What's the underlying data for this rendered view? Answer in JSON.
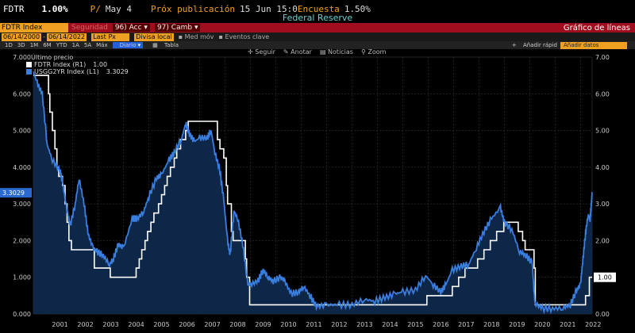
{
  "header": {
    "ticker": "FDTR",
    "price": "1.00%",
    "prior_label": "P/",
    "prior_value": "May 4",
    "next_label": "Próx publicación",
    "next_value": "15 Jun 15:0",
    "survey_label": "Encuesta",
    "survey_value": "1.50%",
    "subtitle": "Federal Reserve"
  },
  "toolbar": {
    "security_field": "FDTR Index",
    "security_hint": "Seguridad",
    "actions_num": "96)",
    "actions_label": "Acc",
    "change_num": "97)",
    "change_label": "Camb",
    "chart_type": "Gráfico de líneas"
  },
  "controls": {
    "date_from": "06/14/2000",
    "date_to": "06/14/2022",
    "last_px": "Last Px",
    "currency": "Divisa local",
    "avg_mov": "Med móv",
    "key_events": "Eventos clave"
  },
  "periods": {
    "items": [
      "1D",
      "3D",
      "1M",
      "6M",
      "YTD",
      "1A",
      "5A",
      "Máx"
    ],
    "frequency": "Diario",
    "table": "Tabla",
    "quick_add": "Añadir rápid",
    "add_data": "Añadir datos"
  },
  "chart_tools": {
    "follow": "Seguir",
    "annotate": "Anotar",
    "news": "Noticias",
    "zoom": "Zoom"
  },
  "legend": {
    "header": "Último precio",
    "items": [
      {
        "name": "FDTR Index (R1)",
        "value": "1.00",
        "color": "#ffffff"
      },
      {
        "name": "USGG2YR Index (L1)",
        "value": "3.3029",
        "color": "#3a7fe0"
      }
    ]
  },
  "chart_data": {
    "type": "line",
    "x_ticks": [
      "2001",
      "2002",
      "2003",
      "2004",
      "2005",
      "2006",
      "2007",
      "2008",
      "2009",
      "2010",
      "2011",
      "2012",
      "2013",
      "2014",
      "2015",
      "2016",
      "2017",
      "2018",
      "2019",
      "2020",
      "2021",
      "2022"
    ],
    "left_ticks": [
      "0.000",
      "1.000",
      "2.000",
      "3.000",
      "4.000",
      "5.000",
      "6.000",
      "7.000"
    ],
    "right_ticks": [
      "0.00",
      "1.00",
      "2.00",
      "3.00",
      "4.00",
      "5.00",
      "6.00",
      "7.00"
    ],
    "ylim": [
      0,
      7
    ],
    "xlim": [
      2000.45,
      2022.46
    ],
    "last_left": "3.3029",
    "last_right": "1.00",
    "series": [
      {
        "name": "FDTR Index (R1)",
        "color": "#ffffff",
        "points": [
          [
            2000.45,
            6.5
          ],
          [
            2001.0,
            6.5
          ],
          [
            2001.05,
            6.0
          ],
          [
            2001.1,
            5.5
          ],
          [
            2001.2,
            5.0
          ],
          [
            2001.3,
            4.5
          ],
          [
            2001.38,
            4.0
          ],
          [
            2001.45,
            3.75
          ],
          [
            2001.6,
            3.5
          ],
          [
            2001.7,
            3.0
          ],
          [
            2001.78,
            2.5
          ],
          [
            2001.85,
            2.0
          ],
          [
            2001.95,
            1.75
          ],
          [
            2002.85,
            1.25
          ],
          [
            2003.48,
            1.0
          ],
          [
            2004.5,
            1.25
          ],
          [
            2004.62,
            1.5
          ],
          [
            2004.72,
            1.75
          ],
          [
            2004.85,
            2.0
          ],
          [
            2004.95,
            2.25
          ],
          [
            2005.08,
            2.5
          ],
          [
            2005.2,
            2.75
          ],
          [
            2005.38,
            3.0
          ],
          [
            2005.5,
            3.25
          ],
          [
            2005.62,
            3.5
          ],
          [
            2005.72,
            3.75
          ],
          [
            2005.85,
            4.0
          ],
          [
            2006.0,
            4.25
          ],
          [
            2006.1,
            4.5
          ],
          [
            2006.25,
            4.75
          ],
          [
            2006.45,
            5.0
          ],
          [
            2006.55,
            5.25
          ],
          [
            2007.7,
            4.75
          ],
          [
            2007.8,
            4.5
          ],
          [
            2007.95,
            4.25
          ],
          [
            2008.05,
            3.5
          ],
          [
            2008.1,
            3.0
          ],
          [
            2008.25,
            2.25
          ],
          [
            2008.32,
            2.0
          ],
          [
            2008.8,
            1.5
          ],
          [
            2008.85,
            1.0
          ],
          [
            2008.97,
            0.25
          ],
          [
            2015.95,
            0.5
          ],
          [
            2016.95,
            0.75
          ],
          [
            2017.2,
            1.0
          ],
          [
            2017.45,
            1.25
          ],
          [
            2017.95,
            1.5
          ],
          [
            2018.2,
            1.75
          ],
          [
            2018.45,
            2.0
          ],
          [
            2018.7,
            2.25
          ],
          [
            2018.98,
            2.5
          ],
          [
            2019.55,
            2.25
          ],
          [
            2019.72,
            2.0
          ],
          [
            2019.82,
            1.75
          ],
          [
            2020.17,
            1.25
          ],
          [
            2020.22,
            0.25
          ],
          [
            2022.2,
            0.5
          ],
          [
            2022.35,
            1.0
          ],
          [
            2022.46,
            1.0
          ]
        ]
      },
      {
        "name": "USGG2YR Index (L1)",
        "color": "#3a7fe0",
        "points": [
          [
            2000.45,
            6.6
          ],
          [
            2000.6,
            6.3
          ],
          [
            2000.8,
            6.0
          ],
          [
            2001.0,
            4.6
          ],
          [
            2001.2,
            4.2
          ],
          [
            2001.5,
            3.9
          ],
          [
            2001.6,
            3.6
          ],
          [
            2001.75,
            2.9
          ],
          [
            2001.9,
            2.4
          ],
          [
            2002.1,
            3.0
          ],
          [
            2002.25,
            3.7
          ],
          [
            2002.45,
            3.0
          ],
          [
            2002.6,
            2.2
          ],
          [
            2002.8,
            1.8
          ],
          [
            2002.95,
            1.7
          ],
          [
            2003.2,
            1.6
          ],
          [
            2003.45,
            1.35
          ],
          [
            2003.6,
            1.5
          ],
          [
            2003.8,
            1.9
          ],
          [
            2004.0,
            1.8
          ],
          [
            2004.35,
            2.6
          ],
          [
            2004.55,
            2.6
          ],
          [
            2004.8,
            2.8
          ],
          [
            2005.0,
            3.2
          ],
          [
            2005.3,
            3.7
          ],
          [
            2005.5,
            3.8
          ],
          [
            2005.8,
            4.2
          ],
          [
            2006.0,
            4.4
          ],
          [
            2006.3,
            4.8
          ],
          [
            2006.45,
            5.2
          ],
          [
            2006.6,
            4.9
          ],
          [
            2006.8,
            4.7
          ],
          [
            2007.0,
            4.8
          ],
          [
            2007.3,
            4.8
          ],
          [
            2007.45,
            5.0
          ],
          [
            2007.6,
            4.4
          ],
          [
            2007.8,
            3.9
          ],
          [
            2007.95,
            3.1
          ],
          [
            2008.1,
            2.0
          ],
          [
            2008.2,
            1.6
          ],
          [
            2008.35,
            2.8
          ],
          [
            2008.5,
            2.6
          ],
          [
            2008.7,
            1.9
          ],
          [
            2008.9,
            0.8
          ],
          [
            2009.0,
            0.8
          ],
          [
            2009.3,
            0.9
          ],
          [
            2009.5,
            1.2
          ],
          [
            2009.7,
            1.0
          ],
          [
            2009.9,
            0.9
          ],
          [
            2010.2,
            1.0
          ],
          [
            2010.35,
            0.9
          ],
          [
            2010.6,
            0.55
          ],
          [
            2010.9,
            0.6
          ],
          [
            2011.1,
            0.75
          ],
          [
            2011.35,
            0.5
          ],
          [
            2011.6,
            0.2
          ],
          [
            2012.0,
            0.25
          ],
          [
            2012.5,
            0.25
          ],
          [
            2013.0,
            0.25
          ],
          [
            2013.5,
            0.4
          ],
          [
            2013.9,
            0.35
          ],
          [
            2014.3,
            0.45
          ],
          [
            2014.7,
            0.55
          ],
          [
            2015.0,
            0.6
          ],
          [
            2015.5,
            0.65
          ],
          [
            2015.9,
            1.05
          ],
          [
            2016.2,
            0.8
          ],
          [
            2016.5,
            0.6
          ],
          [
            2016.7,
            0.8
          ],
          [
            2016.95,
            1.2
          ],
          [
            2017.3,
            1.3
          ],
          [
            2017.6,
            1.35
          ],
          [
            2017.9,
            1.8
          ],
          [
            2018.2,
            2.25
          ],
          [
            2018.5,
            2.6
          ],
          [
            2018.85,
            2.9
          ],
          [
            2019.0,
            2.5
          ],
          [
            2019.3,
            2.3
          ],
          [
            2019.6,
            1.7
          ],
          [
            2019.85,
            1.6
          ],
          [
            2020.1,
            1.4
          ],
          [
            2020.2,
            0.3
          ],
          [
            2020.5,
            0.15
          ],
          [
            2020.9,
            0.15
          ],
          [
            2021.3,
            0.16
          ],
          [
            2021.6,
            0.25
          ],
          [
            2021.85,
            0.65
          ],
          [
            2022.0,
            0.8
          ],
          [
            2022.1,
            1.5
          ],
          [
            2022.2,
            2.2
          ],
          [
            2022.3,
            2.7
          ],
          [
            2022.38,
            2.6
          ],
          [
            2022.43,
            3.0
          ],
          [
            2022.46,
            3.3
          ]
        ]
      }
    ]
  }
}
